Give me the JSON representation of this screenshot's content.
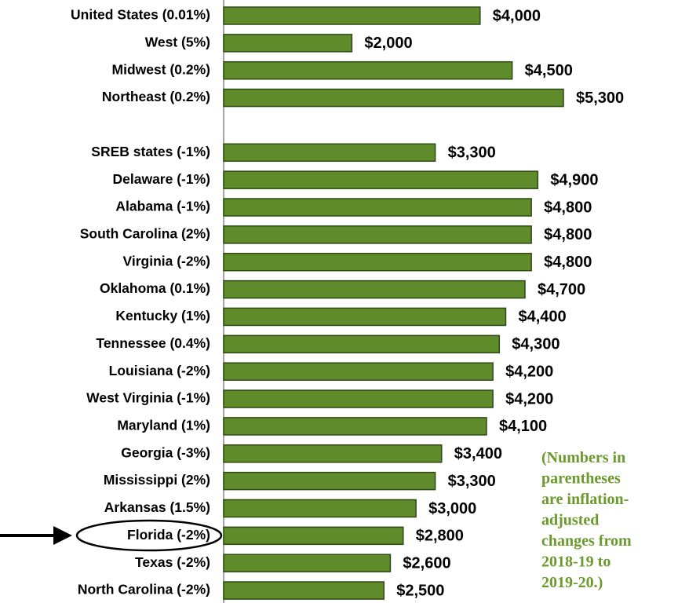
{
  "chart_data": {
    "type": "bar",
    "orientation": "horizontal",
    "categories": [
      "United States (0.01%)",
      "West (5%)",
      "Midwest (0.2%)",
      "Northeast (0.2%)",
      null,
      "SREB states (-1%)",
      "Delaware (-1%)",
      "Alabama (-1%)",
      "South Carolina (2%)",
      "Virginia (-2%)",
      "Oklahoma (0.1%)",
      "Kentucky (1%)",
      "Tennessee (0.4%)",
      "Louisiana (-2%)",
      "West Virginia (-1%)",
      "Maryland (1%)",
      "Georgia (-3%)",
      "Mississippi (2%)",
      "Arkansas (1.5%)",
      "Florida (-2%)",
      "Texas (-2%)",
      "North Carolina (-2%)"
    ],
    "values": [
      4000,
      2000,
      4500,
      5300,
      null,
      3300,
      4900,
      4800,
      4800,
      4800,
      4700,
      4400,
      4300,
      4200,
      4200,
      4100,
      3400,
      3300,
      3000,
      2800,
      2600,
      2500
    ],
    "value_labels": [
      "$4,000",
      "$2,000",
      "$4,500",
      "$5,300",
      null,
      "$3,300",
      "$4,900",
      "$4,800",
      "$4,800",
      "$4,800",
      "$4,700",
      "$4,400",
      "$4,300",
      "$4,200",
      "$4,200",
      "$4,100",
      "$3,400",
      "$3,300",
      "$3,000",
      "$2,800",
      "$2,600",
      "$2,500"
    ],
    "color": "#5f8b2b",
    "annotation": [
      "(Numbers in",
      "parentheses",
      "are inflation-",
      "adjusted",
      "changes from",
      "2018-19 to",
      "2019-20.)"
    ]
  }
}
